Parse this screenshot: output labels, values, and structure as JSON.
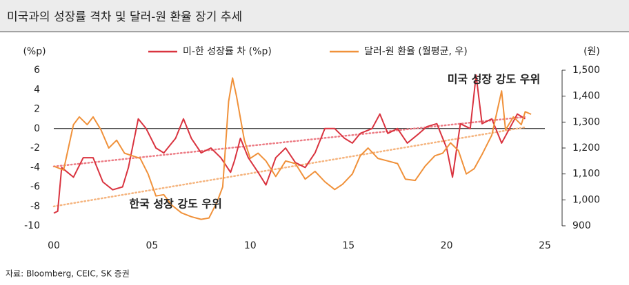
{
  "chart_data": {
    "type": "line",
    "title": "미국과의 성장률 격차 및 달러-원 환율 장기 추세",
    "ylabel": "(%p)",
    "y2label": "(원)",
    "source": "자료: Bloomberg, CEIC, SK 증권",
    "legend": "top",
    "xlim": [
      2000,
      2025
    ],
    "xticks": [
      {
        "value": 2000,
        "label": "00"
      },
      {
        "value": 2005,
        "label": "05"
      },
      {
        "value": 2010,
        "label": "10"
      },
      {
        "value": 2015,
        "label": "15"
      },
      {
        "value": 2020,
        "label": "20"
      },
      {
        "value": 2025,
        "label": "25"
      }
    ],
    "ylim": [
      -10,
      6
    ],
    "yticks": [
      6,
      4,
      2,
      0,
      -2,
      -4,
      -6,
      -8,
      -10
    ],
    "y2lim": [
      900,
      1500
    ],
    "y2ticks": [
      {
        "value": 1500,
        "label": "1,500"
      },
      {
        "value": 1400,
        "label": "1,400"
      },
      {
        "value": 1300,
        "label": "1,300"
      },
      {
        "value": 1200,
        "label": "1,200"
      },
      {
        "value": 1100,
        "label": "1,100"
      },
      {
        "value": 1000,
        "label": "1,000"
      },
      900
    ],
    "series": [
      {
        "name": "미-한 성장률 차 (%p)",
        "color": "#d9333f",
        "x": [
          2000,
          2000.2,
          2000.4,
          2000.7,
          2001,
          2001.5,
          2002,
          2002.5,
          2003,
          2003.5,
          2003.8,
          2004.3,
          2004.7,
          2005.2,
          2005.6,
          2006.2,
          2006.6,
          2007,
          2007.5,
          2008,
          2008.5,
          2009,
          2009.2,
          2009.5,
          2009.9,
          2010.4,
          2010.8,
          2011.3,
          2011.8,
          2012.3,
          2012.8,
          2013.3,
          2013.8,
          2014.3,
          2014.8,
          2015.2,
          2015.6,
          2016.2,
          2016.6,
          2017,
          2017.5,
          2018,
          2018.6,
          2019,
          2019.5,
          2020,
          2020.3,
          2020.7,
          2021.2,
          2021.5,
          2021.8,
          2022.3,
          2022.8,
          2023.2,
          2023.6,
          2024
        ],
        "values": [
          -8.7,
          -8.5,
          -4,
          -4.5,
          -5,
          -3,
          -3,
          -5.5,
          -6.3,
          -6,
          -4,
          1,
          0,
          -2,
          -2.5,
          -1,
          1,
          -1,
          -2.5,
          -2,
          -3,
          -4.5,
          -3.3,
          -1,
          -3,
          -4.5,
          -5.8,
          -3,
          -2,
          -3.5,
          -4,
          -2.5,
          0,
          0,
          -1,
          -1.5,
          -0.5,
          0,
          1.5,
          -0.5,
          0,
          -1.5,
          -0.5,
          0.2,
          0.5,
          -2,
          -5,
          0.5,
          0,
          5.5,
          0.5,
          1,
          -1.5,
          0,
          1.5,
          1
        ]
      },
      {
        "name": "달러-원 환율 (월평균, 우)",
        "color": "#f0913a",
        "axis": "y2",
        "x": [
          2000,
          2000.5,
          2001,
          2001.3,
          2001.7,
          2002,
          2002.4,
          2002.8,
          2003.2,
          2003.6,
          2004,
          2004.4,
          2004.8,
          2005.2,
          2005.6,
          2006,
          2006.5,
          2007,
          2007.5,
          2007.9,
          2008.3,
          2008.6,
          2008.9,
          2009.1,
          2009.3,
          2009.7,
          2010,
          2010.4,
          2010.8,
          2011.3,
          2011.8,
          2012.3,
          2012.8,
          2013.3,
          2013.8,
          2014.3,
          2014.7,
          2015.2,
          2015.6,
          2016,
          2016.5,
          2017,
          2017.5,
          2017.9,
          2018.4,
          2018.9,
          2019.4,
          2019.8,
          2020.2,
          2020.6,
          2021,
          2021.4,
          2021.8,
          2022.3,
          2022.8,
          2023,
          2023.4,
          2023.8,
          2024,
          2024.3
        ],
        "values": [
          1130,
          1115,
          1290,
          1320,
          1290,
          1320,
          1270,
          1200,
          1230,
          1180,
          1170,
          1160,
          1100,
          1015,
          1020,
          980,
          950,
          935,
          925,
          930,
          990,
          1050,
          1380,
          1470,
          1400,
          1230,
          1160,
          1180,
          1150,
          1090,
          1150,
          1140,
          1080,
          1110,
          1070,
          1040,
          1060,
          1100,
          1170,
          1200,
          1160,
          1150,
          1140,
          1080,
          1075,
          1130,
          1170,
          1180,
          1220,
          1190,
          1100,
          1120,
          1175,
          1250,
          1420,
          1270,
          1320,
          1290,
          1340,
          1330
        ]
      }
    ],
    "trendlines": [
      {
        "color": "#ec7b84",
        "x": [
          2000,
          2024
        ],
        "values": [
          -3.9,
          1.2
        ]
      },
      {
        "color": "#f5b47e",
        "axis": "y2",
        "x": [
          2000,
          2024
        ],
        "values": [
          975,
          1280
        ]
      }
    ],
    "annotations": [
      {
        "text": "미국 성장 강도 우위",
        "x": 2022.4,
        "y": 5
      },
      {
        "text": "한국 성장 강도 우위",
        "x": 2006.2,
        "y": -7.8
      }
    ]
  }
}
